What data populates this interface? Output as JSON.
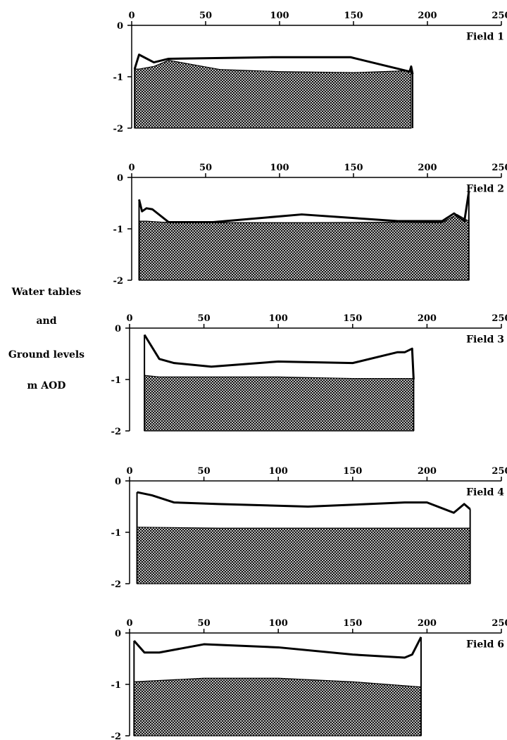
{
  "figure": {
    "ylabel_lines": [
      "Water tables",
      "and",
      "Ground levels",
      "m AOD"
    ]
  },
  "chart_data": [
    {
      "type": "area",
      "field_label": "Field  1",
      "x_ticks": [
        0,
        50,
        100,
        150,
        200,
        250
      ],
      "y_ticks": [
        0,
        -1,
        -2
      ],
      "xlim": [
        0,
        250
      ],
      "ylim": [
        -2,
        0
      ],
      "series": [
        {
          "name": "Water table",
          "x": [
            2,
            5,
            15,
            25,
            95,
            148,
            188,
            189,
            190
          ],
          "y": [
            -0.85,
            -0.57,
            -0.72,
            -0.65,
            -0.62,
            -0.62,
            -0.9,
            -0.8,
            -0.95
          ]
        },
        {
          "name": "Ground level",
          "x": [
            2,
            5,
            15,
            25,
            60,
            100,
            150,
            189
          ],
          "y": [
            -0.85,
            -0.85,
            -0.8,
            -0.68,
            -0.86,
            -0.9,
            -0.92,
            -0.88
          ]
        }
      ]
    },
    {
      "type": "area",
      "field_label": "Field  2",
      "x_ticks": [
        0,
        50,
        100,
        150,
        200,
        250
      ],
      "y_ticks": [
        0,
        -1,
        -2
      ],
      "xlim": [
        0,
        250
      ],
      "ylim": [
        -2,
        0
      ],
      "series": [
        {
          "name": "Water table",
          "x": [
            5,
            7,
            10,
            14,
            25,
            55,
            115,
            180,
            210,
            218,
            225,
            228
          ],
          "y": [
            -0.43,
            -0.66,
            -0.6,
            -0.62,
            -0.87,
            -0.87,
            -0.72,
            -0.85,
            -0.85,
            -0.7,
            -0.85,
            -0.28
          ]
        },
        {
          "name": "Ground level",
          "x": [
            5,
            10,
            20,
            60,
            120,
            180,
            210,
            220,
            228
          ],
          "y": [
            -0.85,
            -0.85,
            -0.87,
            -0.88,
            -0.88,
            -0.87,
            -0.88,
            -0.72,
            -0.85
          ]
        }
      ]
    },
    {
      "type": "area",
      "field_label": "Field  3",
      "x_ticks": [
        0,
        50,
        100,
        150,
        200,
        250
      ],
      "y_ticks": [
        0,
        -1,
        -2
      ],
      "xlim": [
        0,
        250
      ],
      "ylim": [
        -2,
        0
      ],
      "series": [
        {
          "name": "Water table",
          "x": [
            10,
            20,
            30,
            55,
            100,
            150,
            180,
            185,
            190,
            191
          ],
          "y": [
            -0.13,
            -0.6,
            -0.68,
            -0.75,
            -0.65,
            -0.68,
            -0.47,
            -0.47,
            -0.4,
            -1.0
          ]
        },
        {
          "name": "Ground level",
          "x": [
            10,
            20,
            60,
            100,
            150,
            191
          ],
          "y": [
            -0.92,
            -0.95,
            -0.95,
            -0.95,
            -0.98,
            -0.98
          ]
        }
      ]
    },
    {
      "type": "area",
      "field_label": "Field  4",
      "x_ticks": [
        0,
        50,
        100,
        150,
        200,
        250
      ],
      "y_ticks": [
        0,
        -1,
        -2
      ],
      "xlim": [
        0,
        250
      ],
      "ylim": [
        -2,
        0
      ],
      "series": [
        {
          "name": "Water table",
          "x": [
            5,
            15,
            30,
            60,
            120,
            185,
            200,
            218,
            225,
            229
          ],
          "y": [
            -0.22,
            -0.28,
            -0.42,
            -0.45,
            -0.5,
            -0.42,
            -0.42,
            -0.62,
            -0.45,
            -0.55
          ]
        },
        {
          "name": "Ground level",
          "x": [
            5,
            60,
            120,
            185,
            229
          ],
          "y": [
            -0.9,
            -0.92,
            -0.92,
            -0.92,
            -0.92
          ]
        }
      ]
    },
    {
      "type": "area",
      "field_label": "Field  6",
      "x_ticks": [
        0,
        50,
        100,
        150,
        200,
        250
      ],
      "y_ticks": [
        0,
        -1,
        -2
      ],
      "xlim": [
        0,
        250
      ],
      "ylim": [
        -2,
        0
      ],
      "series": [
        {
          "name": "Water table",
          "x": [
            3,
            10,
            20,
            50,
            100,
            150,
            185,
            190,
            196
          ],
          "y": [
            -0.15,
            -0.38,
            -0.38,
            -0.22,
            -0.28,
            -0.42,
            -0.48,
            -0.42,
            -0.08
          ]
        },
        {
          "name": "Ground level",
          "x": [
            3,
            50,
            100,
            150,
            196
          ],
          "y": [
            -0.95,
            -0.88,
            -0.88,
            -0.95,
            -1.05
          ]
        }
      ]
    }
  ]
}
